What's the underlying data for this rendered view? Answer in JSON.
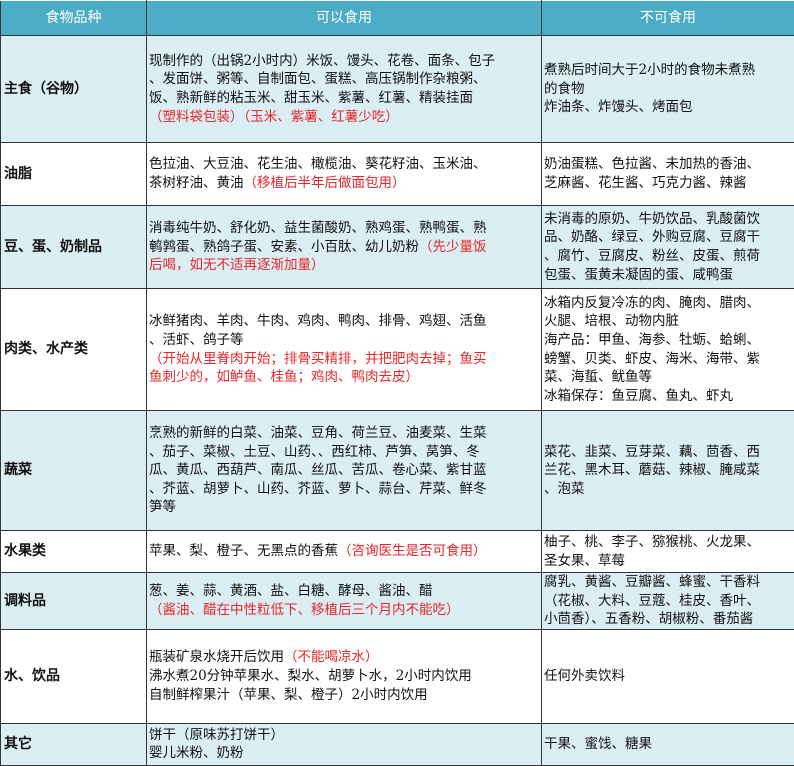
{
  "headers": [
    "食物品种",
    "可以食用",
    "不可食用"
  ],
  "colors": {
    "header_bg": "#4bacc6",
    "row_alt_bg": "#daeef3",
    "note_red": "#e8262a"
  },
  "rows": [
    {
      "category": "主食（谷物）",
      "can": [
        [
          {
            "t": "现制作的（出锅2小时内）米饭、馒头、花卷、面条、包子"
          }
        ],
        [
          {
            "t": "、发面饼、粥等、自制面包、蛋糕、高压锅制作杂粮粥、"
          }
        ],
        [
          {
            "t": "饭、熟新鲜的粘玉米、甜玉米、紫薯、红薯、精装挂面"
          }
        ],
        [
          {
            "t": "（塑料袋包装）（玉米、紫薯、红薯少吃）",
            "red": true
          }
        ]
      ],
      "cannot": [
        [
          {
            "t": "煮熟后时间大于2小时的食物未煮熟"
          }
        ],
        [
          {
            "t": "的食物"
          }
        ],
        [
          {
            "t": "炸油条、炸馒头、烤面包"
          }
        ]
      ]
    },
    {
      "category": "油脂",
      "can": [
        [
          {
            "t": "色拉油、大豆油、花生油、橄榄油、葵花籽油、玉米油、"
          }
        ],
        [
          {
            "t": "茶树籽油、黄油"
          },
          {
            "t": "（移植后半年后做面包用）",
            "red": true
          }
        ]
      ],
      "cannot": [
        [
          {
            "t": "奶油蛋糕、色拉酱、未加热的香油、"
          }
        ],
        [
          {
            "t": "芝麻酱、花生酱、巧克力酱、辣酱"
          }
        ]
      ]
    },
    {
      "category": "豆、蛋、奶制品",
      "can": [
        [
          {
            "t": "消毒纯牛奶、舒化奶、益生菌酸奶、熟鸡蛋、熟鸭蛋、熟"
          }
        ],
        [
          {
            "t": "鹌鹑蛋、熟鸽子蛋、安素、小百肽、幼儿奶粉"
          },
          {
            "t": "（先少量饭",
            "red": true
          }
        ],
        [
          {
            "t": "后喝，如无不适再逐渐加量）",
            "red": true
          }
        ]
      ],
      "cannot": [
        [
          {
            "t": "未消毒的原奶、牛奶饮品、乳酸菌饮"
          }
        ],
        [
          {
            "t": "品、奶酪、绿豆、外购豆腐、豆腐干"
          }
        ],
        [
          {
            "t": "、腐竹、豆腐皮、粉丝、皮蛋、煎荷"
          }
        ],
        [
          {
            "t": "包蛋、蛋黄未凝固的蛋、咸鸭蛋"
          }
        ]
      ]
    },
    {
      "category": "肉类、水产类",
      "can": [
        [
          {
            "t": "冰鲜猪肉、羊肉、牛肉、鸡肉、鸭肉、排骨、鸡翅、活鱼"
          }
        ],
        [
          {
            "t": "、活虾、鸽子等"
          }
        ],
        [
          {
            "t": "（开始从里脊肉开始；排骨买精排，并把肥肉去掉；鱼买",
            "red": true
          }
        ],
        [
          {
            "t": "鱼刺少的，如鲈鱼、桂鱼；鸡肉、鸭肉去皮）",
            "red": true
          }
        ]
      ],
      "cannot": [
        [
          {
            "t": "冰箱内反复冷冻的肉、腌肉、腊肉、"
          }
        ],
        [
          {
            "t": "火腿、培根、动物内脏"
          }
        ],
        [
          {
            "t": "海产品：甲鱼、海参、牡蛎、蛤蜊、"
          }
        ],
        [
          {
            "t": "螃蟹、贝类、虾皮、海米、海带、紫"
          }
        ],
        [
          {
            "t": "菜、海蜇、鱿鱼等"
          }
        ],
        [
          {
            "t": "冰箱保存：鱼豆腐、鱼丸、虾丸"
          }
        ]
      ]
    },
    {
      "category": "蔬菜",
      "can": [
        [
          {
            "t": "烹熟的新鲜的白菜、油菜、豆角、荷兰豆、油麦菜、生菜"
          }
        ],
        [
          {
            "t": "、茄子、菜椒、土豆、山药、、西红柿、芦笋、莴笋、冬"
          }
        ],
        [
          {
            "t": "瓜、黄瓜、西葫芦、南瓜、丝瓜、苦瓜、卷心菜、紫甘蓝"
          }
        ],
        [
          {
            "t": "、芥蓝、胡萝卜、山药、芥蓝、萝卜、蒜台、芹菜、鲜冬"
          }
        ],
        [
          {
            "t": "笋等"
          }
        ]
      ],
      "cannot": [
        [
          {
            "t": "菜花、韭菜、豆芽菜、藕、茴香、西"
          }
        ],
        [
          {
            "t": "兰花、黑木耳、蘑菇、辣椒、腌咸菜"
          }
        ],
        [
          {
            "t": "、泡菜"
          }
        ]
      ]
    },
    {
      "category": "水果类",
      "can": [
        [
          {
            "t": "苹果、梨、橙子、无黑点的香蕉"
          },
          {
            "t": "（咨询医生是否可食用）",
            "red": true
          }
        ]
      ],
      "cannot": [
        [
          {
            "t": "柚子、桃、李子、猕猴桃、火龙果、"
          }
        ],
        [
          {
            "t": "圣女果、草莓"
          }
        ]
      ]
    },
    {
      "category": "调料品",
      "can": [
        [
          {
            "t": "葱、姜、蒜、黄酒、盐、白糖、酵母、酱油、醋"
          }
        ],
        [
          {
            "t": "（酱油、醋在中性粒低下、移植后三个月内不能吃）",
            "red": true
          }
        ]
      ],
      "cannot": [
        [
          {
            "t": "腐乳、黄酱、豆瓣酱、蜂蜜、干香料"
          }
        ],
        [
          {
            "t": "（花椒、大料、豆蔻、桂皮、香叶、"
          }
        ],
        [
          {
            "t": "小茴香）、五香粉、胡椒粉、番茄酱"
          }
        ]
      ]
    },
    {
      "category": "水、饮品",
      "can": [
        [
          {
            "t": "瓶装矿泉水烧开后饮用"
          },
          {
            "t": "（不能喝凉水）",
            "red": true
          }
        ],
        [
          {
            "t": "沸水煮20分钟苹果水、梨水、胡萝卜水，2小时内饮用"
          }
        ],
        [
          {
            "t": "自制鲜榨果汁（苹果、梨、橙子）2小时内饮用"
          }
        ]
      ],
      "cannot": [
        [
          {
            "t": "任何外卖饮料"
          }
        ]
      ]
    },
    {
      "category": "其它",
      "can": [
        [
          {
            "t": "饼干（原味苏打饼干）"
          }
        ],
        [
          {
            "t": "婴儿米粉、奶粉"
          }
        ]
      ],
      "cannot": [
        [
          {
            "t": "干果、蜜饯、糖果"
          }
        ]
      ]
    }
  ]
}
